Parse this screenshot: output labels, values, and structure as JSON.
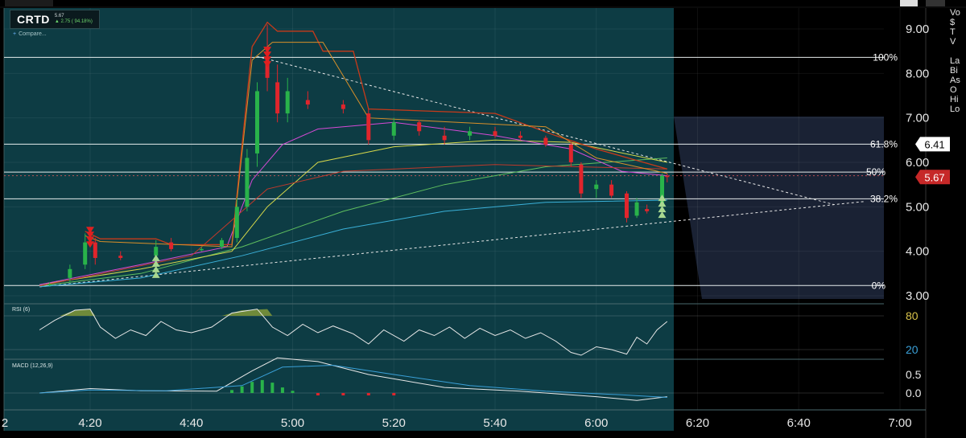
{
  "ticker": {
    "symbol": "CRTD",
    "price": "5.67",
    "change": "▲ 2.75 ( 94.18%)",
    "compare": "Compare..."
  },
  "price_axis": [
    "9.00",
    "8.00",
    "7.00",
    "6.00",
    "5.00",
    "4.00",
    "3.00"
  ],
  "rsi_axis": [
    "80",
    "20"
  ],
  "macd_axis": [
    "0.5",
    "0.0"
  ],
  "time_axis": [
    "4:20",
    "4:40",
    "5:00",
    "5:20",
    "5:40",
    "6:00",
    "6:20",
    "6:40",
    "7:00"
  ],
  "time_axis_edge": "2",
  "fib_labels": [
    "100%",
    "61.8%",
    "50%",
    "38.2%",
    "0%"
  ],
  "price_tags": {
    "fib618": "6.41",
    "last": "5.67"
  },
  "rsi_label": "RSI (6)",
  "macd_label": "MACD (12,26,9)",
  "right_edge_letters": [
    "Vo",
    "$",
    "T",
    "V",
    "",
    "La",
    "Bi",
    "As",
    "O",
    "Hi",
    "Lo"
  ],
  "colors": {
    "chart_bg": "#0d3c44",
    "future_bg": "#000000",
    "shaded_bg": "#1a2234",
    "up": "#29b34a",
    "down": "#e0252c",
    "rsi_line": "#e8e8e8",
    "rsi_fill": "#6f8a3a",
    "macd_line": "#e8e8e8",
    "signal_line": "#3aa0d8",
    "tag_red": "#c62828",
    "tag_white": "#ffffff"
  },
  "chart_data": {
    "type": "candlestick",
    "x_axis_time_range": [
      "4:10",
      "7:05"
    ],
    "y_range": [
      2.9,
      9.35
    ],
    "fib_levels": [
      {
        "label": "0%",
        "price": 3.23
      },
      {
        "label": "38.2%",
        "price": 5.18
      },
      {
        "label": "50%",
        "price": 5.78
      },
      {
        "label": "61.8%",
        "price": 6.41
      },
      {
        "label": "100%",
        "price": 8.36
      }
    ],
    "candles_ohlc_approx": [
      [
        "4:12",
        3.25,
        3.3,
        3.22,
        3.26
      ],
      [
        "4:16",
        3.4,
        3.7,
        3.3,
        3.6
      ],
      [
        "4:19",
        3.7,
        4.4,
        3.6,
        4.2
      ],
      [
        "4:21",
        4.2,
        4.3,
        3.7,
        3.85
      ],
      [
        "4:26",
        3.9,
        4.0,
        3.8,
        3.85
      ],
      [
        "4:33",
        3.9,
        4.25,
        3.9,
        4.1
      ],
      [
        "4:36",
        4.2,
        4.3,
        4.0,
        4.05
      ],
      [
        "4:42",
        4.05,
        4.1,
        4.0,
        4.05
      ],
      [
        "4:46",
        4.1,
        4.3,
        4.05,
        4.25
      ],
      [
        "4:49",
        4.3,
        5.2,
        4.2,
        5.0
      ],
      [
        "4:51",
        5.0,
        6.3,
        4.9,
        6.1
      ],
      [
        "4:53",
        6.2,
        7.8,
        5.9,
        7.6
      ],
      [
        "4:55",
        8.3,
        9.1,
        7.6,
        7.9
      ],
      [
        "4:57",
        7.8,
        8.2,
        6.9,
        7.1
      ],
      [
        "4:59",
        7.1,
        7.9,
        6.9,
        7.6
      ],
      [
        "5:03",
        7.4,
        7.6,
        7.2,
        7.3
      ],
      [
        "5:10",
        7.3,
        7.4,
        7.1,
        7.2
      ],
      [
        "5:15",
        7.1,
        7.2,
        6.4,
        6.5
      ],
      [
        "5:20",
        6.6,
        7.0,
        6.5,
        6.9
      ],
      [
        "5:25",
        6.9,
        6.95,
        6.6,
        6.7
      ],
      [
        "5:30",
        6.6,
        6.8,
        6.4,
        6.5
      ],
      [
        "5:35",
        6.6,
        6.8,
        6.5,
        6.7
      ],
      [
        "5:40",
        6.7,
        6.8,
        6.55,
        6.6
      ],
      [
        "5:45",
        6.6,
        6.7,
        6.5,
        6.55
      ],
      [
        "5:50",
        6.55,
        6.6,
        6.35,
        6.4
      ],
      [
        "5:55",
        6.4,
        6.45,
        5.9,
        6.0
      ],
      [
        "5:57",
        5.95,
        6.0,
        5.2,
        5.3
      ],
      [
        "6:00",
        5.4,
        5.6,
        5.2,
        5.5
      ],
      [
        "6:03",
        5.5,
        5.6,
        5.2,
        5.25
      ],
      [
        "6:06",
        5.3,
        5.35,
        4.65,
        4.75
      ],
      [
        "6:08",
        4.8,
        5.2,
        4.75,
        5.1
      ],
      [
        "6:10",
        4.95,
        5.05,
        4.85,
        4.9
      ],
      [
        "6:13",
        5.0,
        5.75,
        4.9,
        5.7
      ],
      [
        "6:14",
        5.7,
        5.75,
        5.55,
        5.67
      ]
    ],
    "last_price": 5.67
  }
}
